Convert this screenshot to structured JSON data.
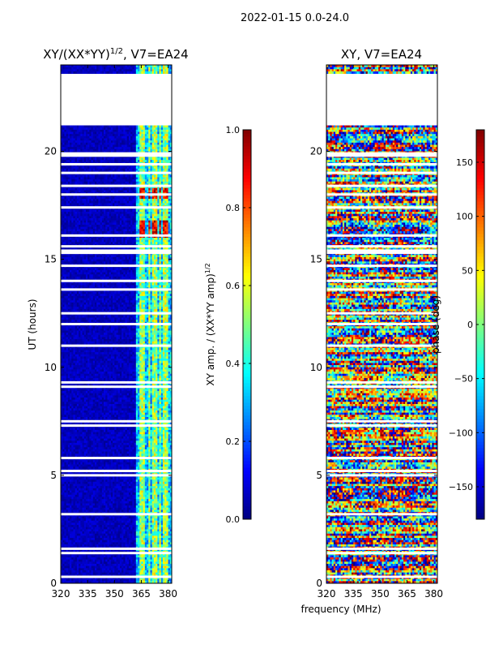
{
  "suptitle": "2022-01-15 0.0-24.0",
  "fig_xlabel": "frequency (MHz)",
  "chart_data": [
    {
      "type": "heatmap",
      "title": "XY/(XX*YY)",
      "title_exponent": "1/2",
      "title_suffix": ", V7=EA24",
      "xlabel": "",
      "ylabel": "UT (hours)",
      "xlim": [
        320,
        382
      ],
      "ylim": [
        0,
        24
      ],
      "xticks": [
        320,
        335,
        350,
        365,
        380
      ],
      "yticks": [
        0,
        5,
        10,
        15,
        20
      ],
      "colorbar": {
        "label_main": "XY amp. / (XX*YY amp)",
        "label_exponent": "1/2",
        "range": [
          0.0,
          1.0
        ],
        "ticks": [
          0.0,
          0.2,
          0.4,
          0.6,
          0.8,
          1.0
        ],
        "tick_labels": [
          "0.0",
          "0.2",
          "0.4",
          "0.6",
          "0.8",
          "1.0"
        ],
        "colormap": "jet"
      },
      "no_data_ranges_hours": [
        [
          21.2,
          23.6
        ]
      ],
      "gap_rows_hours": [
        0.3,
        1.4,
        1.6,
        3.2,
        5.0,
        5.2,
        5.8,
        7.3,
        7.5,
        9.1,
        9.3,
        11.0,
        12.0,
        12.5,
        13.6,
        14.0,
        14.7,
        15.3,
        15.4,
        15.6,
        16.1,
        17.4,
        18.0,
        18.4,
        19.0,
        19.4,
        19.8,
        19.9
      ],
      "band_columns_mhz": [
        [
          364,
          367
        ],
        [
          369,
          370
        ],
        [
          371,
          374
        ],
        [
          375,
          376
        ],
        [
          377,
          380
        ]
      ],
      "high_amplitude_hours": [
        [
          16.0,
          16.8
        ],
        [
          17.8,
          18.3
        ]
      ]
    },
    {
      "type": "heatmap",
      "title": "XY, V7=EA24",
      "xlabel": "",
      "ylabel": "",
      "xlim": [
        320,
        382
      ],
      "ylim": [
        0,
        24
      ],
      "xticks": [
        320,
        335,
        350,
        365,
        380
      ],
      "yticks": [
        0,
        5,
        10,
        15,
        20
      ],
      "colorbar": {
        "label": "phase (deg)",
        "range": [
          -180,
          180
        ],
        "ticks": [
          -150,
          -100,
          -50,
          0,
          50,
          100,
          150
        ],
        "tick_labels": [
          "−150",
          "−100",
          "−50",
          "0",
          "50",
          "100",
          "150"
        ],
        "colormap": "jet"
      },
      "no_data_ranges_hours": [
        [
          21.2,
          23.6
        ]
      ],
      "gap_rows_hours": [
        0.3,
        1.4,
        1.6,
        3.2,
        5.0,
        5.2,
        5.8,
        7.3,
        7.5,
        9.1,
        9.3,
        11.0,
        12.0,
        12.5,
        13.6,
        14.0,
        14.7,
        15.3,
        15.4,
        15.6,
        16.1,
        17.4,
        18.0,
        18.4,
        19.0,
        19.4,
        19.8,
        19.9
      ]
    }
  ]
}
